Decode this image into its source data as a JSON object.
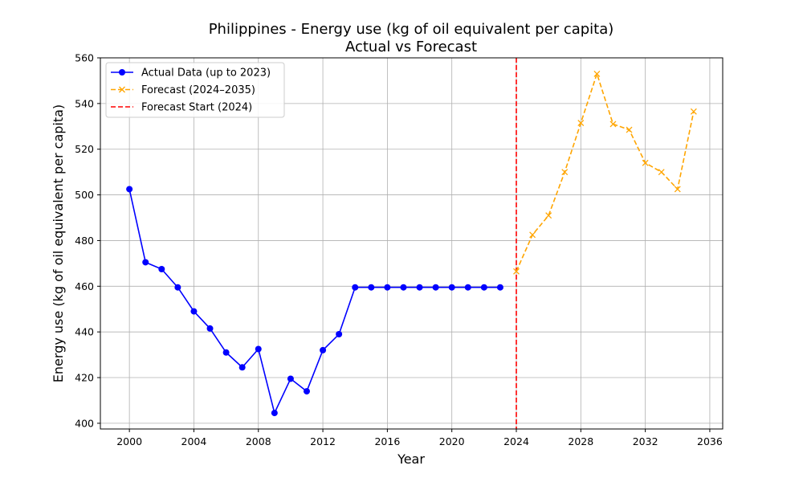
{
  "chart_data": {
    "type": "line",
    "title": "Philippines - Energy use (kg of oil equivalent per capita)",
    "subtitle": "Actual vs Forecast",
    "xlabel": "Year",
    "ylabel": "Energy use (kg of oil equivalent per capita)",
    "xlim": [
      1998.2,
      2036.8
    ],
    "ylim": [
      397.5,
      560
    ],
    "x_ticks": [
      2000,
      2004,
      2008,
      2012,
      2016,
      2020,
      2024,
      2028,
      2032,
      2036
    ],
    "y_ticks": [
      400,
      420,
      440,
      460,
      480,
      500,
      520,
      540,
      560
    ],
    "grid": true,
    "legend_position": "top-left",
    "series": [
      {
        "name": "Actual Data (up to 2023)",
        "color": "#0000ff",
        "line_style": "solid",
        "marker": "circle",
        "x": [
          2000,
          2001,
          2002,
          2003,
          2004,
          2005,
          2006,
          2007,
          2008,
          2009,
          2010,
          2011,
          2012,
          2013,
          2014,
          2015,
          2016,
          2017,
          2018,
          2019,
          2020,
          2021,
          2022,
          2023
        ],
        "y": [
          502.5,
          470.5,
          467.5,
          459.5,
          449.0,
          441.5,
          431.0,
          424.5,
          432.5,
          404.5,
          419.5,
          414.0,
          432.0,
          439.0,
          459.5,
          459.5,
          459.5,
          459.5,
          459.5,
          459.5,
          459.5,
          459.5,
          459.5,
          459.5
        ]
      },
      {
        "name": "Forecast (2024–2035)",
        "color": "#ffa500",
        "line_style": "dashed",
        "marker": "x",
        "x": [
          2024,
          2025,
          2026,
          2027,
          2028,
          2029,
          2030,
          2031,
          2032,
          2033,
          2034,
          2035
        ],
        "y": [
          466.5,
          482.5,
          491.0,
          510.0,
          531.5,
          553.0,
          531.0,
          528.5,
          514.0,
          510.0,
          502.5,
          536.5
        ]
      }
    ],
    "reference_line": {
      "name": "Forecast Start (2024)",
      "x": 2024,
      "color": "#ff0000",
      "line_style": "dashed"
    }
  }
}
